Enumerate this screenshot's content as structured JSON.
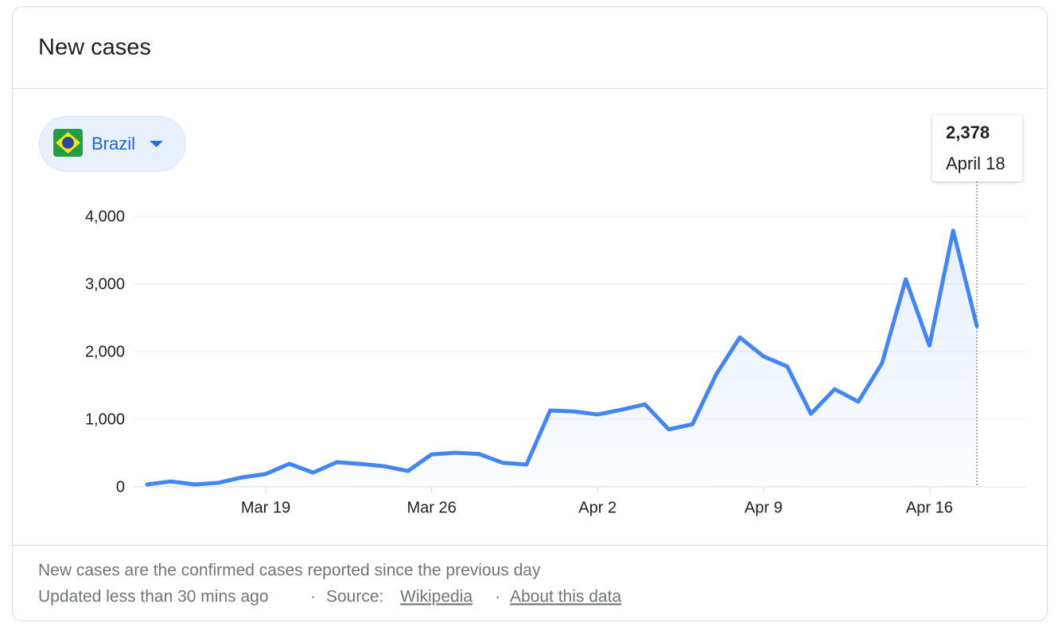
{
  "header": {
    "title": "New cases"
  },
  "chart_data": {
    "type": "line",
    "categories": [
      null,
      null,
      null,
      null,
      null,
      "Mar 19",
      null,
      null,
      null,
      null,
      null,
      null,
      "Mar 26",
      null,
      null,
      null,
      null,
      null,
      null,
      "Apr 2",
      null,
      null,
      null,
      null,
      null,
      null,
      "Apr 9",
      null,
      null,
      null,
      null,
      null,
      null,
      "Apr 16",
      null,
      null
    ],
    "series": [
      {
        "name": "Brazil",
        "color": "#4285f4",
        "values": [
          35,
          80,
          35,
          60,
          140,
          190,
          340,
          210,
          365,
          340,
          305,
          235,
          480,
          505,
          485,
          355,
          330,
          1130,
          1115,
          1070,
          1140,
          1220,
          850,
          925,
          1660,
          2210,
          1930,
          1780,
          1080,
          1445,
          1260,
          1830,
          3070,
          2090,
          3790,
          2378
        ]
      }
    ],
    "ylim": [
      0,
      4000
    ],
    "yticks": [
      0,
      {
        "value": 1000,
        "label": "1,000"
      },
      {
        "value": 2000,
        "label": "2,000"
      },
      {
        "value": 3000,
        "label": "3,000"
      },
      {
        "value": 4000,
        "label": "4,000"
      }
    ],
    "grid": true,
    "tooltip": {
      "value": 2378,
      "label": "2,378",
      "date": "April 18"
    }
  },
  "footer": {
    "note": "New cases are the confirmed cases reported since the previous day",
    "updated": "Updated less than 30 mins ago",
    "separator": "·",
    "source_label": "Source:",
    "source_link": "Wikipedia",
    "about_link": "About this data"
  }
}
